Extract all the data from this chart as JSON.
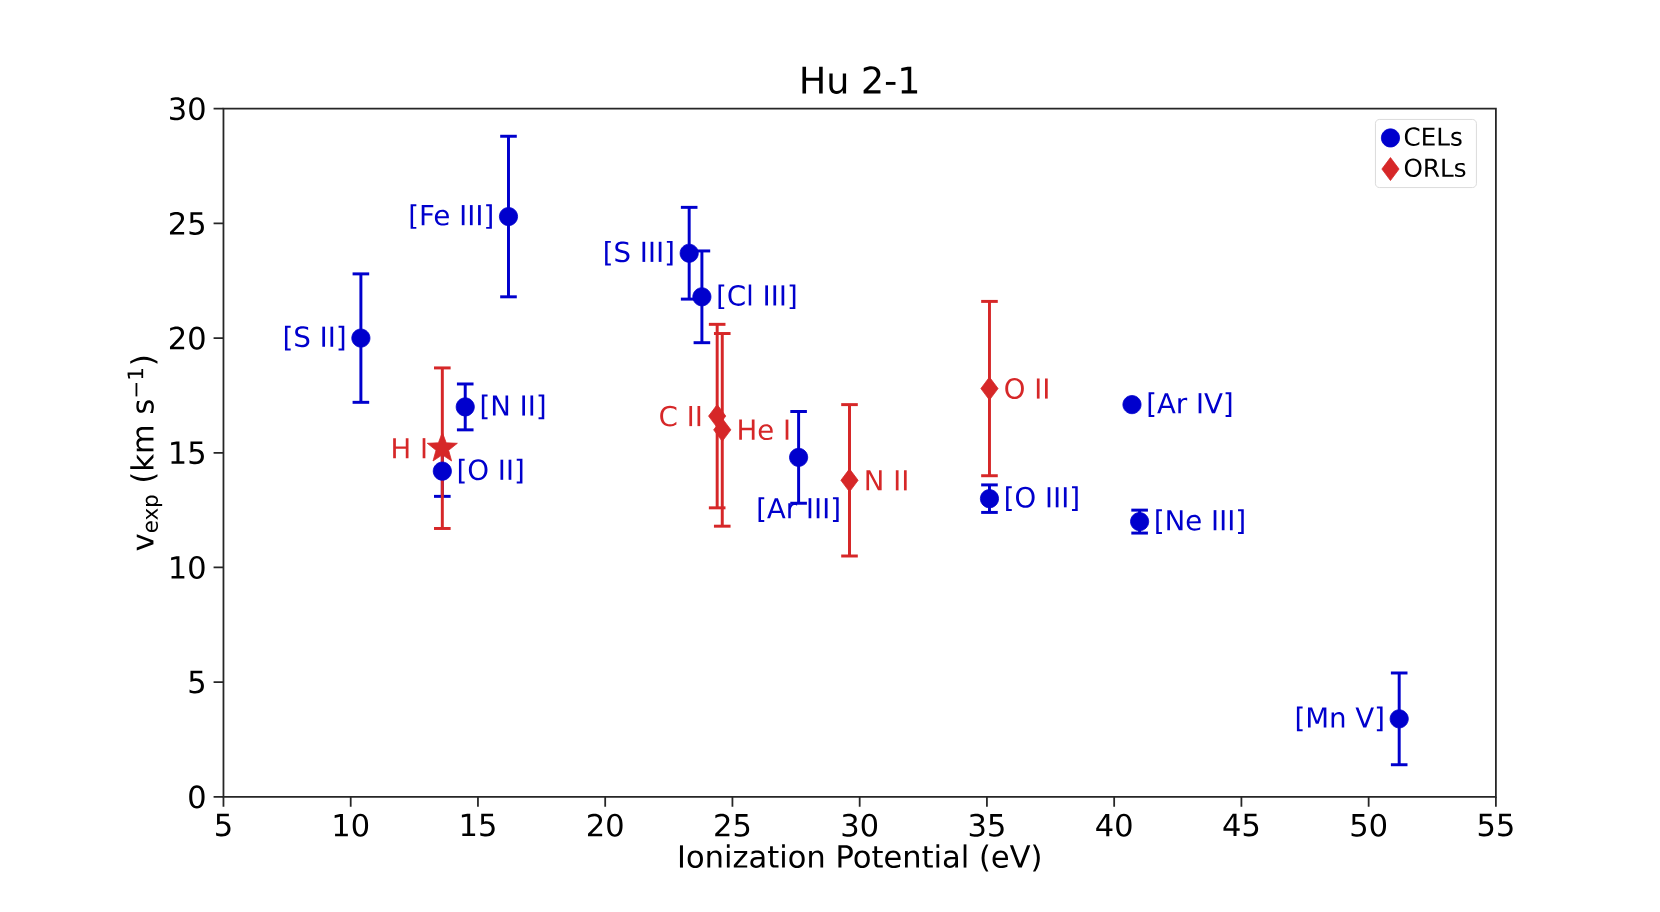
{
  "chart_data": {
    "type": "scatter",
    "title": "Hu 2-1",
    "xlabel": "Ionization Potential (eV)",
    "ylabel": "v$_{exp}$ (km s$^{−1}$)",
    "xlim": [
      5,
      55
    ],
    "xticks": [
      5,
      10,
      15,
      20,
      25,
      30,
      35,
      40,
      45,
      50,
      55
    ],
    "ylim": [
      0,
      30
    ],
    "yticks": [
      0,
      5,
      10,
      15,
      20,
      25,
      30
    ],
    "legend": "top right",
    "series": [
      {
        "name": "CELs",
        "color": "#0000cd",
        "marker": "circle",
        "x": [
          10.4,
          16.2,
          23.3,
          23.8,
          14.5,
          13.6,
          27.6,
          35.1,
          40.7,
          41.0,
          51.2
        ],
        "values": [
          20.0,
          25.3,
          23.7,
          21.8,
          17.0,
          14.2,
          14.8,
          13.0,
          17.1,
          12.0,
          3.4
        ],
        "errors": [
          2.8,
          3.5,
          2.0,
          2.0,
          1.0,
          1.1,
          2.0,
          0.6,
          null,
          0.5,
          2.0
        ]
      },
      {
        "name": "ORLs",
        "color": "#d62728",
        "marker": "diamond",
        "x": [
          24.4,
          24.6,
          29.6,
          35.1
        ],
        "values": [
          16.6,
          16.0,
          13.8,
          17.8
        ],
        "errors": [
          4.0,
          4.2,
          3.3,
          3.8
        ]
      },
      {
        "color": "#d62728",
        "marker": "star",
        "x": [
          13.6
        ],
        "values": [
          15.2
        ],
        "errors": [
          3.5
        ]
      }
    ],
    "annotations": [
      {
        "text": "[S II]",
        "x": 10.4,
        "y": 20.0
      },
      {
        "text": "[Fe III]",
        "x": 16.2,
        "y": 25.3
      },
      {
        "text": "[S III]",
        "x": 23.3,
        "y": 23.7
      },
      {
        "text": "[Cl III]",
        "x": 23.8,
        "y": 21.8
      },
      {
        "text": "[N II]",
        "x": 14.5,
        "y": 17.0
      },
      {
        "text": "[O II]",
        "x": 13.6,
        "y": 14.2
      },
      {
        "text": "[Ar III]",
        "x": 27.6,
        "y": 14.8
      },
      {
        "text": "[O III]",
        "x": 35.1,
        "y": 13.0
      },
      {
        "text": "[Ar IV]",
        "x": 40.7,
        "y": 17.1
      },
      {
        "text": "[Ne III]",
        "x": 41.0,
        "y": 12.0
      },
      {
        "text": "[Mn V]",
        "x": 51.2,
        "y": 3.4
      },
      {
        "text": "C II",
        "x": 24.4,
        "y": 16.6
      },
      {
        "text": "He I",
        "x": 24.6,
        "y": 16.0
      },
      {
        "text": "N II",
        "x": 29.6,
        "y": 13.8
      },
      {
        "text": "O II",
        "x": 35.1,
        "y": 17.8
      },
      {
        "text": "H I",
        "x": 13.6,
        "y": 15.2
      }
    ]
  }
}
